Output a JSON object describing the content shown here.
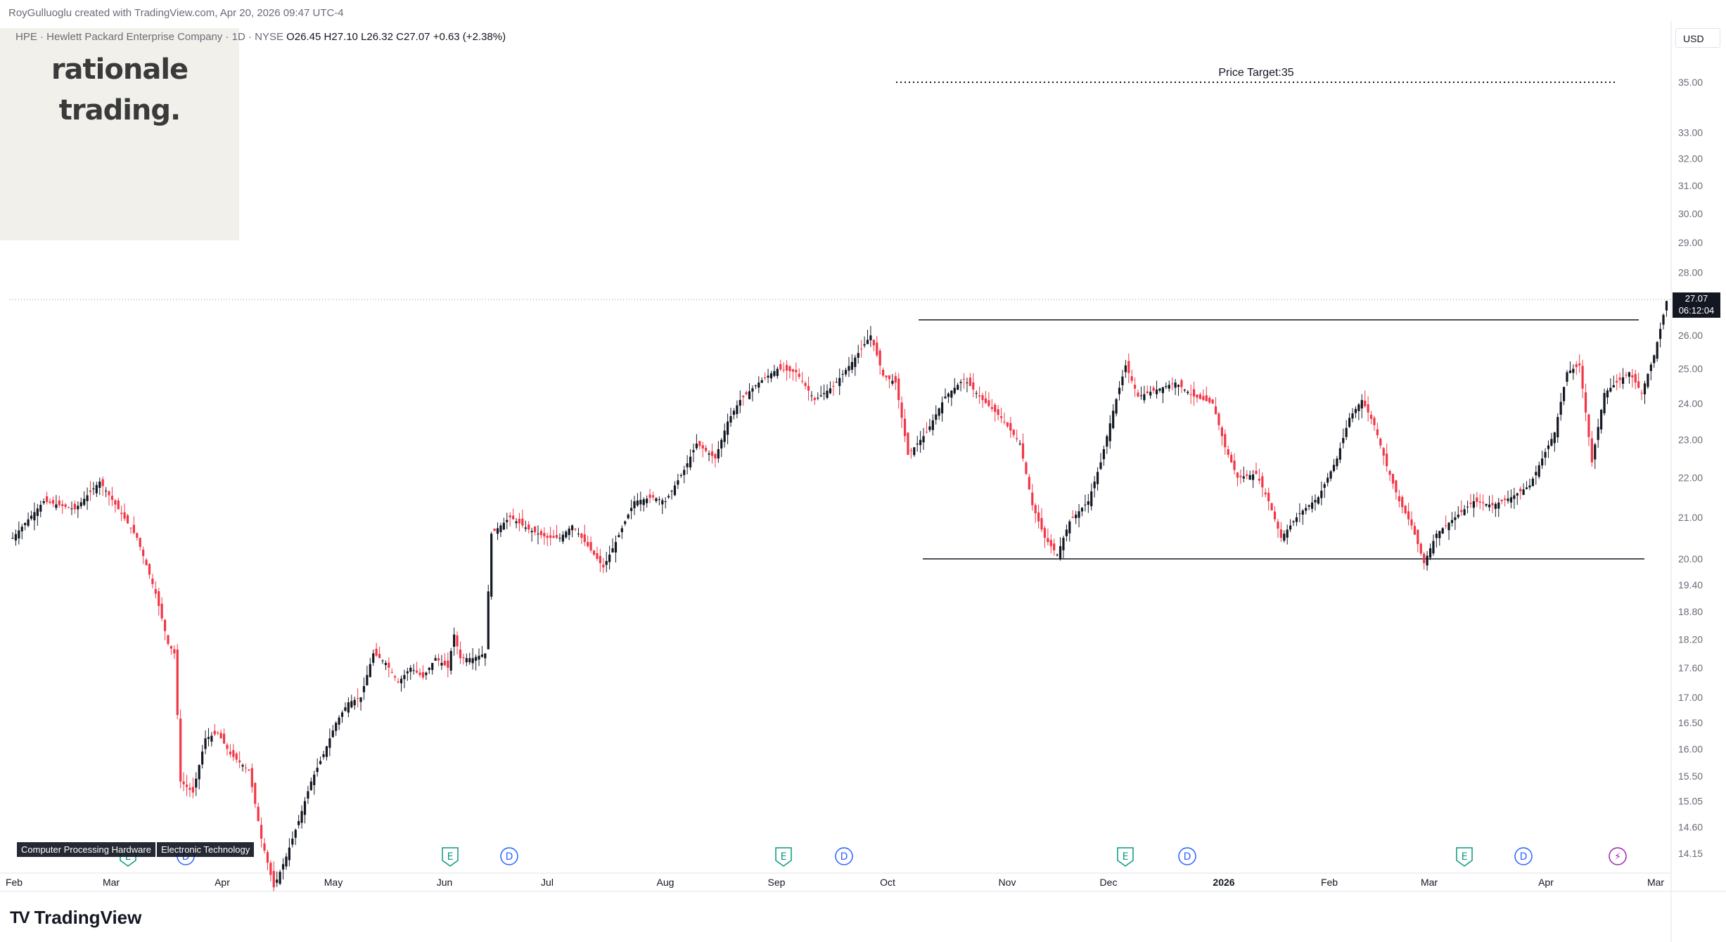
{
  "header": {
    "credit": "RoyGulluoglu created with TradingView.com, Apr 20, 2026 09:47 UTC-4",
    "symbol_line": "HPE · Hewlett Packard Enterprise Company · 1D · NYSE",
    "ohlc": {
      "o": "O26.45",
      "h": "H27.10",
      "l": "L26.32",
      "c": "C27.07",
      "chg": "+0.63 (+2.38%)"
    },
    "currency": "USD"
  },
  "branding": {
    "line1": "rationale",
    "line2": "trading."
  },
  "price_box": {
    "price": "27.07",
    "countdown": "06:12:04"
  },
  "sector_tags": [
    "Computer Processing Hardware",
    "Electronic Technology"
  ],
  "event_markers": [
    "E",
    "D",
    "E",
    "D",
    "E",
    "D",
    "E",
    "D",
    "E",
    "D",
    "⚡"
  ],
  "footer": {
    "brand": "TradingView"
  },
  "colors": {
    "up": "#131722",
    "down": "#f23645",
    "earnings": "#089981",
    "dividend": "#2962ff",
    "split": "#9c27b0"
  },
  "chart_data": {
    "type": "candlestick",
    "title": "",
    "scale": "log",
    "ylim": [
      14.0,
      36.5
    ],
    "price_ticks": [
      "35.00",
      "33.00",
      "32.00",
      "31.00",
      "30.00",
      "29.00",
      "28.00",
      "26.00",
      "25.00",
      "24.00",
      "23.00",
      "22.00",
      "21.00",
      "20.00",
      "19.40",
      "18.80",
      "18.20",
      "17.60",
      "17.00",
      "16.50",
      "16.00",
      "15.50",
      "15.05",
      "14.60",
      "14.15"
    ],
    "price_tick_values": [
      35,
      33,
      32,
      31,
      30,
      29,
      28,
      26,
      25,
      24,
      23,
      22,
      21,
      20,
      19.4,
      18.8,
      18.2,
      17.6,
      17,
      16.5,
      16,
      15.5,
      15.05,
      14.6,
      14.15
    ],
    "time_labels": [
      "Feb",
      "Mar",
      "Apr",
      "May",
      "Jun",
      "Jul",
      "Aug",
      "Sep",
      "Oct",
      "Nov",
      "Dec",
      "2026",
      "Feb",
      "Mar",
      "Apr",
      "Mar"
    ],
    "annotations": {
      "price_target_label": "Price Target:35",
      "price_target": 35,
      "resistance": 26.4,
      "support": 19.95
    },
    "close_path": [
      [
        0,
        20.5
      ],
      [
        10,
        21.4
      ],
      [
        20,
        21.2
      ],
      [
        28,
        21.9
      ],
      [
        34,
        21.2
      ],
      [
        40,
        20.5
      ],
      [
        46,
        19.2
      ],
      [
        50,
        18.1
      ],
      [
        52,
        17.9
      ],
      [
        54,
        15.4
      ],
      [
        58,
        15.2
      ],
      [
        62,
        16.2
      ],
      [
        66,
        16.3
      ],
      [
        70,
        15.9
      ],
      [
        76,
        15.6
      ],
      [
        80,
        14.4
      ],
      [
        84,
        13.6
      ],
      [
        88,
        14.1
      ],
      [
        92,
        14.7
      ],
      [
        96,
        15.4
      ],
      [
        100,
        15.9
      ],
      [
        104,
        16.5
      ],
      [
        108,
        16.9
      ],
      [
        112,
        17.0
      ],
      [
        116,
        17.9
      ],
      [
        120,
        17.7
      ],
      [
        124,
        17.3
      ],
      [
        128,
        17.6
      ],
      [
        132,
        17.4
      ],
      [
        136,
        17.8
      ],
      [
        140,
        17.6
      ],
      [
        142,
        18.3
      ],
      [
        144,
        17.8
      ],
      [
        148,
        17.8
      ],
      [
        152,
        17.9
      ],
      [
        154,
        20.6
      ],
      [
        160,
        21.0
      ],
      [
        166,
        20.7
      ],
      [
        172,
        20.5
      ],
      [
        176,
        20.5
      ],
      [
        180,
        20.8
      ],
      [
        184,
        20.4
      ],
      [
        190,
        19.8
      ],
      [
        194,
        20.4
      ],
      [
        200,
        21.4
      ],
      [
        206,
        21.5
      ],
      [
        210,
        21.4
      ],
      [
        216,
        22.2
      ],
      [
        220,
        22.9
      ],
      [
        226,
        22.5
      ],
      [
        230,
        23.5
      ],
      [
        234,
        24.1
      ],
      [
        240,
        24.6
      ],
      [
        246,
        25.0
      ],
      [
        252,
        24.9
      ],
      [
        258,
        24.1
      ],
      [
        264,
        24.5
      ],
      [
        270,
        25.2
      ],
      [
        276,
        26.0
      ],
      [
        280,
        24.8
      ],
      [
        284,
        24.6
      ],
      [
        288,
        22.6
      ],
      [
        294,
        23.2
      ],
      [
        300,
        24.2
      ],
      [
        306,
        24.7
      ],
      [
        312,
        24.1
      ],
      [
        318,
        23.6
      ],
      [
        324,
        22.9
      ],
      [
        328,
        21.3
      ],
      [
        332,
        20.5
      ],
      [
        336,
        20.1
      ],
      [
        340,
        20.9
      ],
      [
        346,
        21.4
      ],
      [
        350,
        22.4
      ],
      [
        354,
        23.8
      ],
      [
        358,
        25.1
      ],
      [
        362,
        24.2
      ],
      [
        368,
        24.4
      ],
      [
        374,
        24.6
      ],
      [
        380,
        24.2
      ],
      [
        386,
        24.0
      ],
      [
        390,
        22.8
      ],
      [
        394,
        22.0
      ],
      [
        400,
        22.1
      ],
      [
        404,
        21.4
      ],
      [
        408,
        20.5
      ],
      [
        414,
        21.1
      ],
      [
        420,
        21.5
      ],
      [
        426,
        22.5
      ],
      [
        430,
        23.6
      ],
      [
        434,
        24.1
      ],
      [
        438,
        23.4
      ],
      [
        442,
        22.3
      ],
      [
        446,
        21.4
      ],
      [
        450,
        20.8
      ],
      [
        454,
        19.9
      ],
      [
        458,
        20.6
      ],
      [
        464,
        21.0
      ],
      [
        470,
        21.4
      ],
      [
        476,
        21.3
      ],
      [
        482,
        21.5
      ],
      [
        488,
        21.8
      ],
      [
        492,
        22.5
      ],
      [
        496,
        23.2
      ],
      [
        500,
        24.9
      ],
      [
        504,
        25.1
      ],
      [
        508,
        22.4
      ],
      [
        512,
        24.3
      ],
      [
        516,
        24.6
      ],
      [
        520,
        24.9
      ],
      [
        524,
        24.3
      ],
      [
        528,
        25.4
      ],
      [
        530,
        26.2
      ],
      [
        532,
        27.07
      ]
    ],
    "legend": "none"
  }
}
